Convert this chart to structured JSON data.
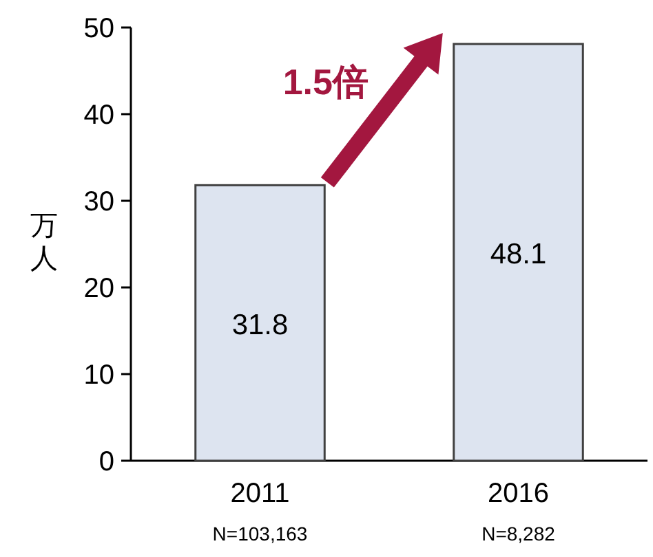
{
  "chart_data": {
    "type": "bar",
    "ylabel": "万人",
    "categories": [
      "2011",
      "2016"
    ],
    "values": [
      31.8,
      48.1
    ],
    "color": "#dde4f0",
    "ylim": [
      0,
      50
    ],
    "yticks": [
      0,
      10,
      20,
      30,
      40,
      50
    ],
    "data_labels": true,
    "grid": false,
    "annotations": [
      "**1.5倍**",
      "N=103,163",
      "N=8,282"
    ]
  }
}
